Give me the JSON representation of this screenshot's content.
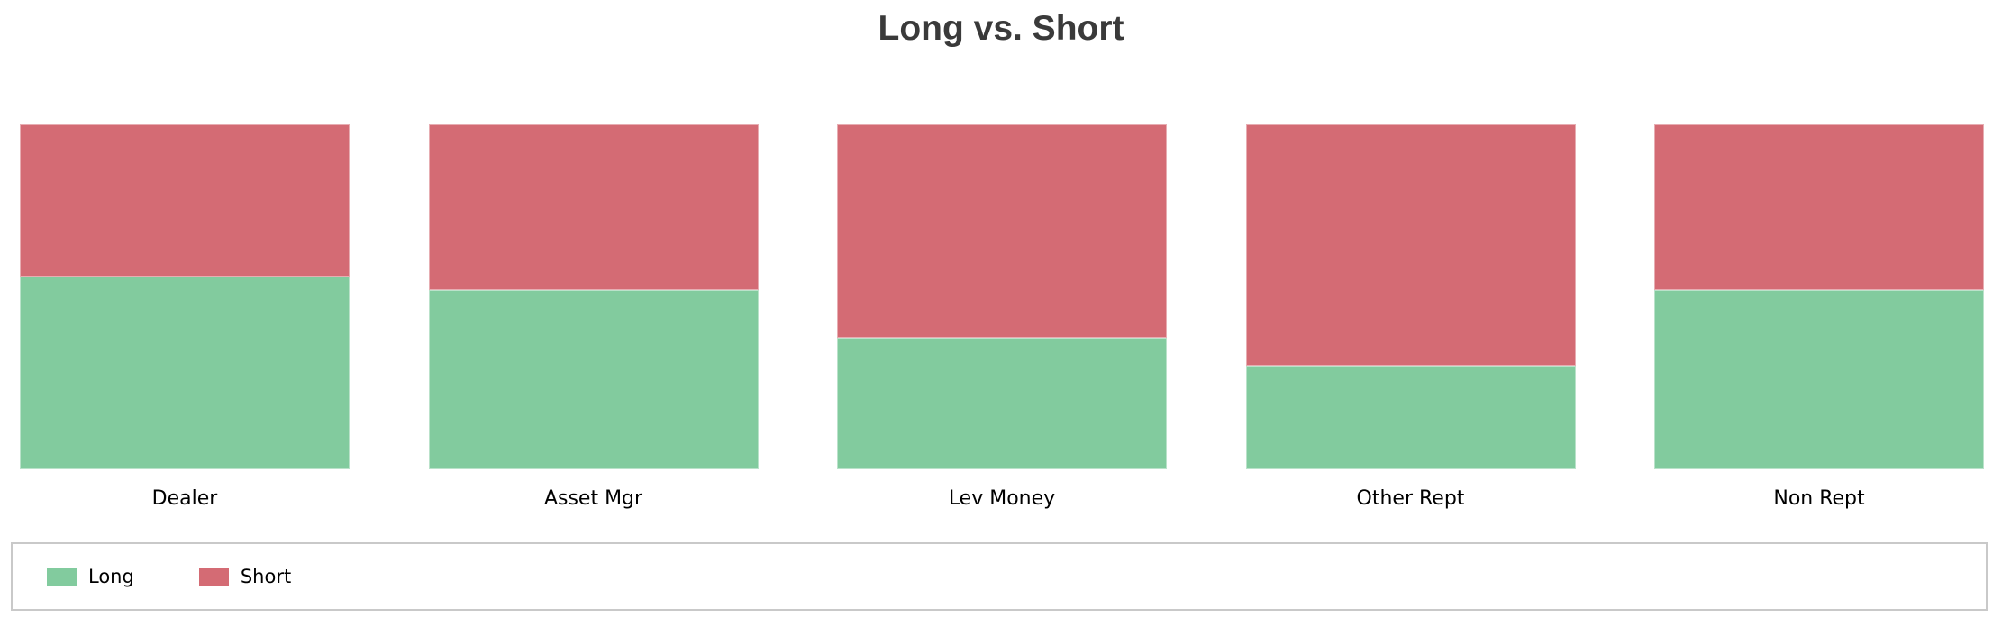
{
  "title": "Long vs. Short",
  "colors": {
    "long": "#82cb9e",
    "short": "#d46b74",
    "title_text": "#3a3a3a",
    "label_text": "#000000",
    "legend_border": "#c9c9c9",
    "background": "#ffffff"
  },
  "legend": {
    "position": "bottom",
    "items": [
      {
        "label": "Long",
        "color_key": "long"
      },
      {
        "label": "Short",
        "color_key": "short"
      }
    ]
  },
  "chart_data": {
    "type": "bar",
    "stacked": true,
    "normalized": true,
    "orientation": "vertical",
    "title": "Long vs. Short",
    "xlabel": "",
    "ylabel": "",
    "value_axis_hidden": true,
    "gridlines": false,
    "legend_position": "bottom",
    "categories": [
      "Dealer",
      "Asset Mgr",
      "Lev Money",
      "Other Rept",
      "Non Rept"
    ],
    "series": [
      {
        "name": "Long",
        "color": "#82cb9e",
        "values": [
          0.56,
          0.52,
          0.38,
          0.3,
          0.52
        ]
      },
      {
        "name": "Short",
        "color": "#d46b74",
        "values": [
          0.44,
          0.48,
          0.62,
          0.7,
          0.48
        ]
      }
    ]
  }
}
